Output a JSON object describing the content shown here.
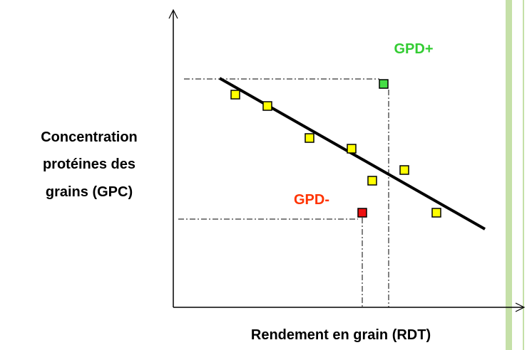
{
  "y_axis": {
    "label_lines": [
      "Concentration",
      "protéines des",
      "grains (GPC)"
    ]
  },
  "x_axis": {
    "label": "Rendement en grain (RDT)"
  },
  "annotations": {
    "high": "GPD+",
    "low": "GPD-"
  }
}
